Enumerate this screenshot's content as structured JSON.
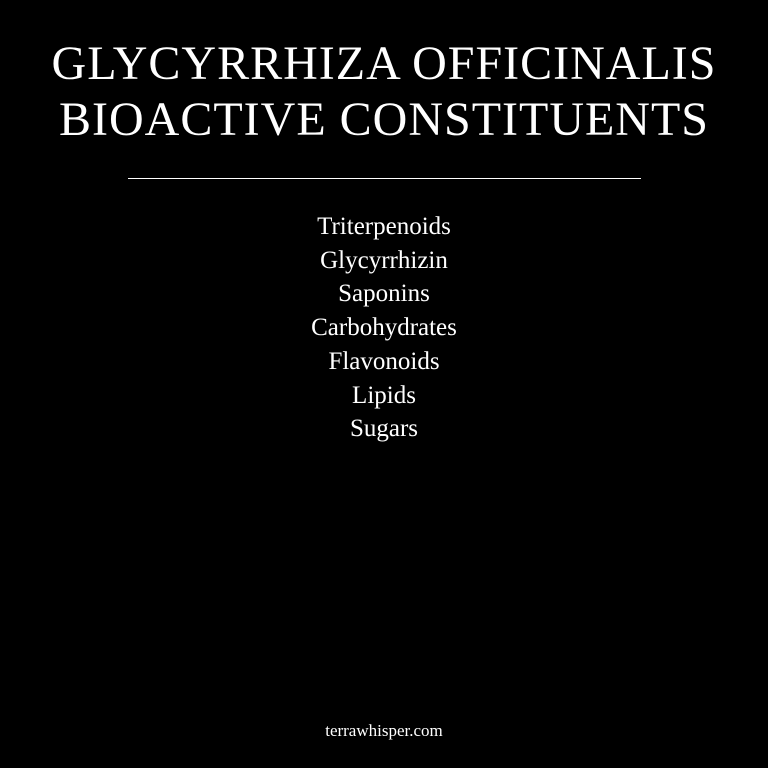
{
  "title": {
    "line1": "GLYCYRRHIZA OFFICINALIS",
    "line2": "BIOACTIVE CONSTITUENTS"
  },
  "constituents": [
    "Triterpenoids",
    "Glycyrrhizin",
    "Saponins",
    "Carbohydrates",
    "Flavonoids",
    "Lipids",
    "Sugars"
  ],
  "footer": {
    "source": "terrawhisper.com"
  },
  "colors": {
    "background": "#000000",
    "text": "#ffffff"
  }
}
